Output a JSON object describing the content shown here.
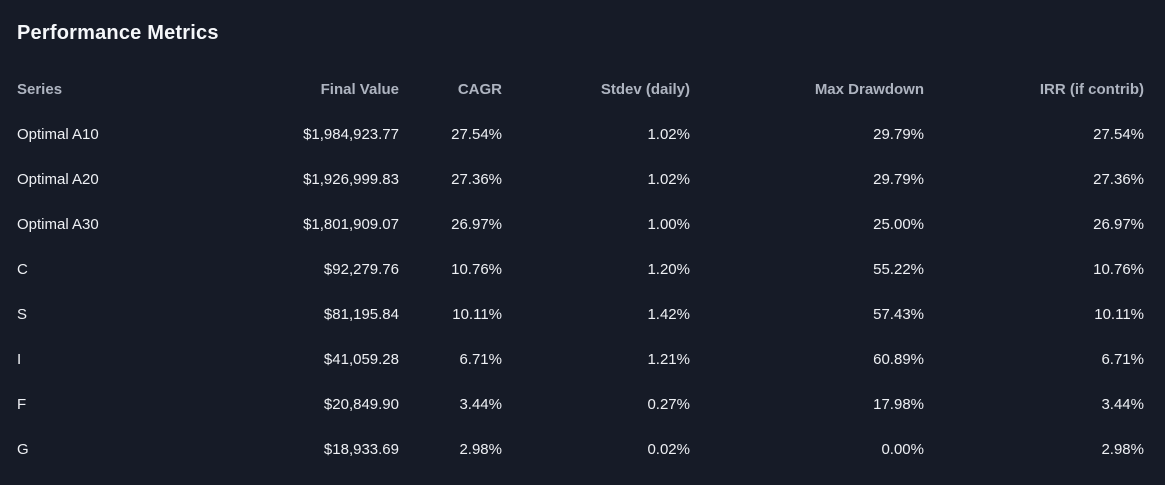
{
  "panel": {
    "title": "Performance Metrics"
  },
  "colors": {
    "background": "#161b27",
    "title_text": "#f5f7fa",
    "header_text": "#aeb4c0",
    "cell_text": "#eef0f4"
  },
  "table": {
    "columns": [
      {
        "label": "Series",
        "align": "left"
      },
      {
        "label": "Final Value",
        "align": "right"
      },
      {
        "label": "CAGR",
        "align": "right"
      },
      {
        "label": "Stdev (daily)",
        "align": "right"
      },
      {
        "label": "Max Drawdown",
        "align": "right"
      },
      {
        "label": "IRR (if contrib)",
        "align": "right"
      }
    ],
    "rows": [
      {
        "series": "Optimal A10",
        "final_value": "$1,984,923.77",
        "cagr": "27.54%",
        "stdev_daily": "1.02%",
        "max_drawdown": "29.79%",
        "irr": "27.54%"
      },
      {
        "series": "Optimal A20",
        "final_value": "$1,926,999.83",
        "cagr": "27.36%",
        "stdev_daily": "1.02%",
        "max_drawdown": "29.79%",
        "irr": "27.36%"
      },
      {
        "series": "Optimal A30",
        "final_value": "$1,801,909.07",
        "cagr": "26.97%",
        "stdev_daily": "1.00%",
        "max_drawdown": "25.00%",
        "irr": "26.97%"
      },
      {
        "series": "C",
        "final_value": "$92,279.76",
        "cagr": "10.76%",
        "stdev_daily": "1.20%",
        "max_drawdown": "55.22%",
        "irr": "10.76%"
      },
      {
        "series": "S",
        "final_value": "$81,195.84",
        "cagr": "10.11%",
        "stdev_daily": "1.42%",
        "max_drawdown": "57.43%",
        "irr": "10.11%"
      },
      {
        "series": "I",
        "final_value": "$41,059.28",
        "cagr": "6.71%",
        "stdev_daily": "1.21%",
        "max_drawdown": "60.89%",
        "irr": "6.71%"
      },
      {
        "series": "F",
        "final_value": "$20,849.90",
        "cagr": "3.44%",
        "stdev_daily": "0.27%",
        "max_drawdown": "17.98%",
        "irr": "3.44%"
      },
      {
        "series": "G",
        "final_value": "$18,933.69",
        "cagr": "2.98%",
        "stdev_daily": "0.02%",
        "max_drawdown": "0.00%",
        "irr": "2.98%"
      }
    ]
  }
}
